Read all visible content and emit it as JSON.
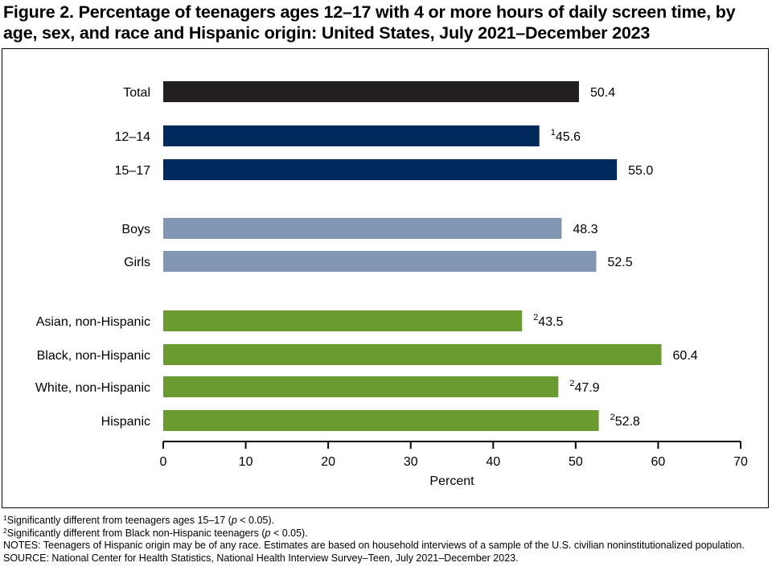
{
  "chart_data": {
    "type": "bar",
    "orientation": "horizontal",
    "title": "Figure 2. Percentage of teenagers ages 12–17 with 4 or more hours of daily screen time, by age, sex, and race and Hispanic origin: United States, July 2021–December 2023",
    "xlabel": "Percent",
    "xlim": [
      0,
      70
    ],
    "xticks": [
      "0",
      "10",
      "20",
      "30",
      "40",
      "50",
      "60",
      "70"
    ],
    "grid": false,
    "colors": {
      "total": "#231f20",
      "age": "#002a5c",
      "sex": "#8096b2",
      "race": "#6a9a30"
    },
    "bars": [
      {
        "category": "Total",
        "value": 50.4,
        "label": "50.4",
        "sup": "",
        "group": "total"
      },
      {
        "category": "12–14",
        "value": 45.6,
        "label": "45.6",
        "sup": "1",
        "group": "age"
      },
      {
        "category": "15–17",
        "value": 55.0,
        "label": "55.0",
        "sup": "",
        "group": "age"
      },
      {
        "category": "Boys",
        "value": 48.3,
        "label": "48.3",
        "sup": "",
        "group": "sex"
      },
      {
        "category": "Girls",
        "value": 52.5,
        "label": "52.5",
        "sup": "",
        "group": "sex"
      },
      {
        "category": "Asian, non-Hispanic",
        "value": 43.5,
        "label": "43.5",
        "sup": "2",
        "group": "race"
      },
      {
        "category": "Black, non-Hispanic",
        "value": 60.4,
        "label": "60.4",
        "sup": "",
        "group": "race"
      },
      {
        "category": "White, non-Hispanic",
        "value": 47.9,
        "label": "47.9",
        "sup": "2",
        "group": "race"
      },
      {
        "category": "Hispanic",
        "value": 52.8,
        "label": "52.8",
        "sup": "2",
        "group": "race"
      }
    ]
  },
  "footnotes": {
    "fn1": {
      "mark": "1",
      "before": "Significantly different from teenagers ages 15–17 (",
      "p": "p",
      "after": " < 0.05)."
    },
    "fn2": {
      "mark": "2",
      "before": "Significantly different from Black non-Hispanic teenagers (",
      "p": "p",
      "after": " < 0.05)."
    },
    "notes": "NOTES: Teenagers of Hispanic origin may be of any race. Estimates are based on household interviews of a sample of the U.S. civilian noninstitutionalized population.",
    "source": "SOURCE: National Center for Health Statistics, National Health Interview Survey–Teen, July 2021–December 2023."
  }
}
